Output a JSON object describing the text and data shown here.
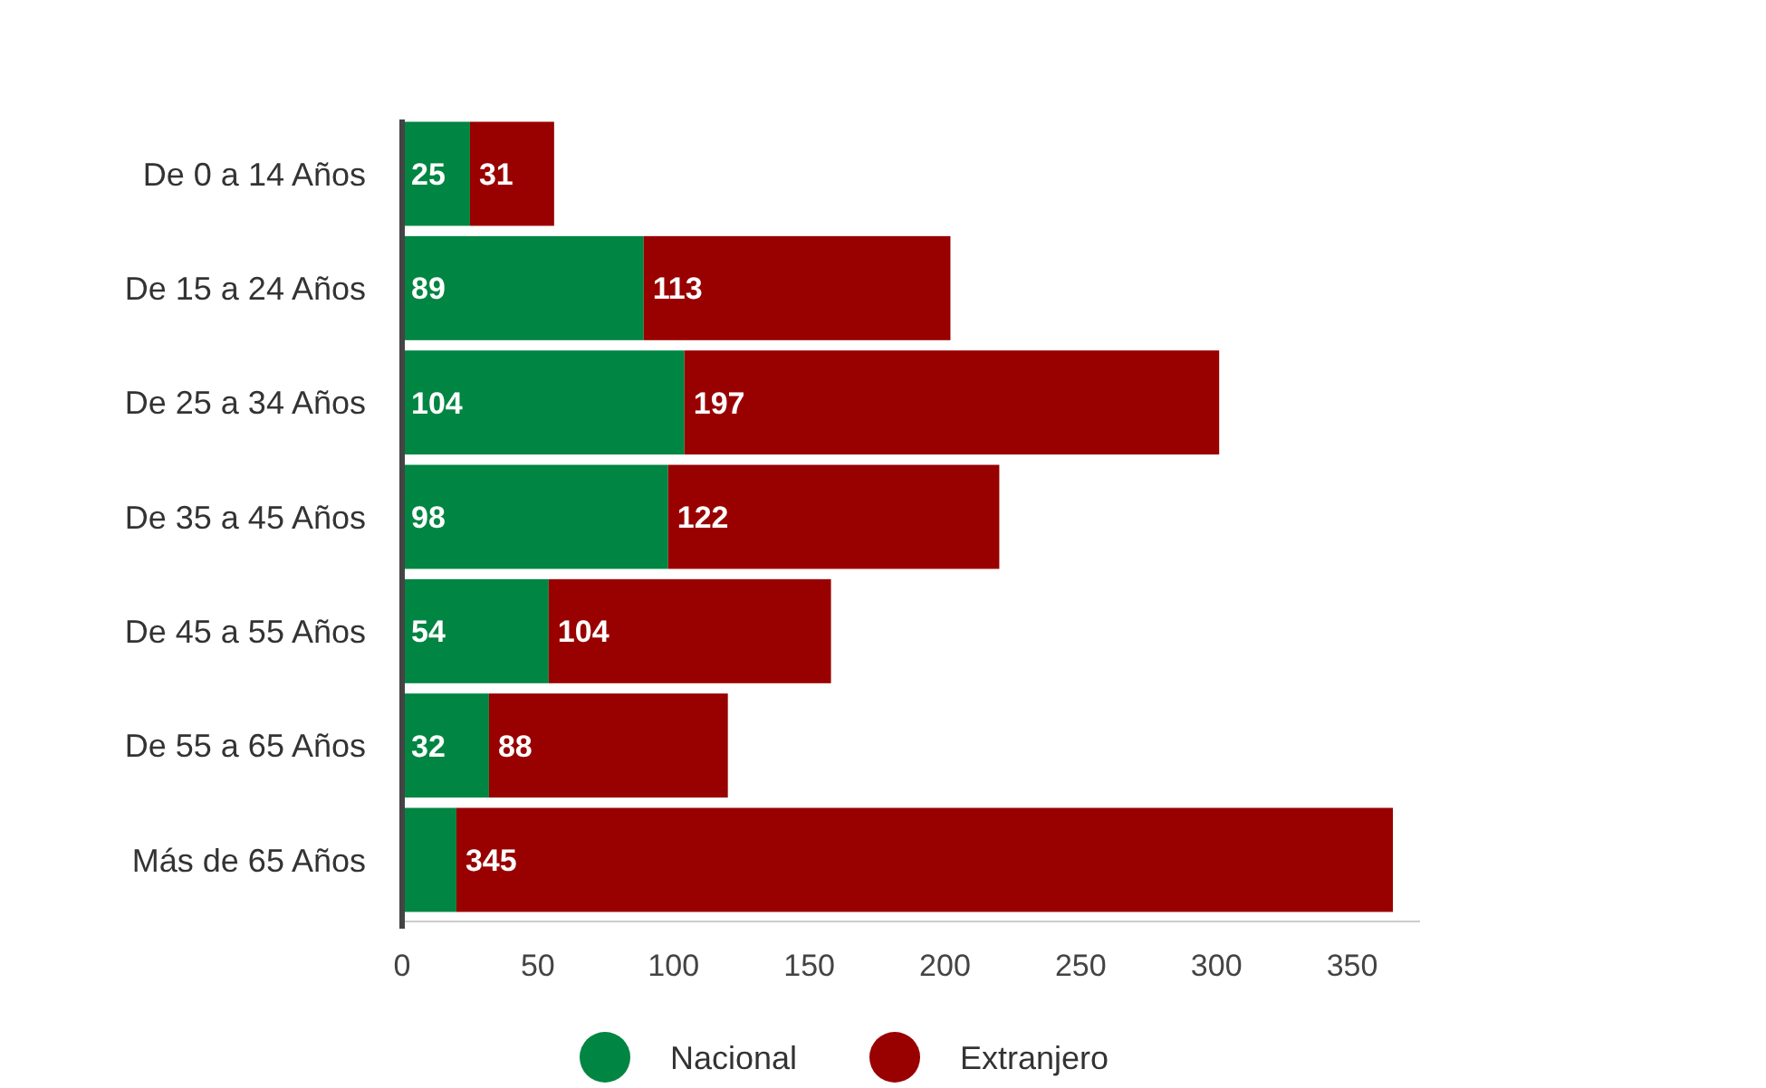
{
  "chart_data": {
    "type": "bar",
    "orientation": "horizontal",
    "stacked": true,
    "categories": [
      "De 0 a 14 Años",
      "De 15 a 24 Años",
      "De 25 a 34 Años",
      "De 35 a 45 Años",
      "De 45 a 55 Años",
      "De 55 a 65 Años",
      "Más de 65 Años"
    ],
    "series": [
      {
        "name": "Nacional",
        "color": "#008542",
        "values": [
          25,
          89,
          104,
          98,
          54,
          32,
          20
        ],
        "value_labels": [
          "25",
          "89",
          "104",
          "98",
          "54",
          "32",
          null
        ]
      },
      {
        "name": "Extranjero",
        "color": "#990000",
        "values": [
          31,
          113,
          197,
          122,
          104,
          88,
          345
        ],
        "value_labels": [
          "31",
          "113",
          "197",
          "122",
          "104",
          "88",
          "345"
        ]
      }
    ],
    "xlim": [
      0,
      375
    ],
    "xticks": [
      0,
      50,
      100,
      150,
      200,
      250,
      300,
      350
    ],
    "grid": false,
    "legend": "bottom"
  }
}
